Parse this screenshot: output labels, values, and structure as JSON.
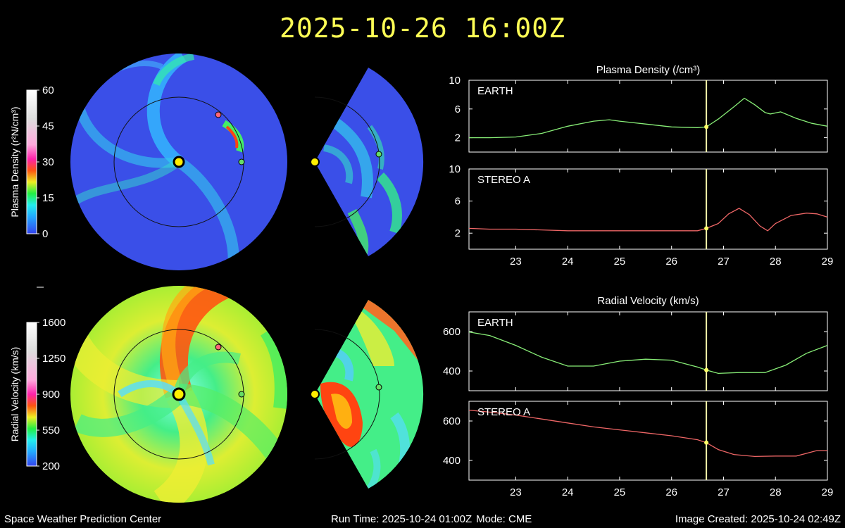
{
  "header": {
    "timestamp": "2025-10-26 16:00Z"
  },
  "footer": {
    "center": "Space Weather Prediction Center",
    "run_time_label": "Run Time: 2025-10-24 01:00Z",
    "mode_label": "Mode: CME",
    "image_created_label": "Image Created: 2025-10-24 02:49Z"
  },
  "colorbars": {
    "density": {
      "label": "Plasma Density (r²N/cm³)",
      "ticks": [
        "0",
        "15",
        "30",
        "45",
        "60"
      ],
      "range": [
        0,
        60
      ]
    },
    "velocity": {
      "label": "Radial Velocity (km/s)",
      "ticks": [
        "200",
        "550",
        "900",
        "1250",
        "1600"
      ],
      "range": [
        200,
        1600
      ]
    }
  },
  "colors": {
    "earth_trace": "#88ee77",
    "stereo_trace": "#ee6666",
    "time_marker": "#ffffaa",
    "title": "#ffff55",
    "sun": "#ffee00",
    "earth_dot": "#66dd66",
    "stereo_dot": "#ff6677"
  },
  "chart_data": [
    {
      "type": "line",
      "title": "Plasma Density (/cm³)",
      "panels": [
        {
          "name": "EARTH",
          "ylim": [
            0,
            10
          ],
          "yticks": [
            "2",
            "6",
            "10"
          ],
          "x": [
            22.1,
            22.5,
            23.0,
            23.5,
            24.0,
            24.5,
            24.8,
            25.0,
            25.5,
            26.0,
            26.5,
            26.67,
            26.9,
            27.2,
            27.4,
            27.6,
            27.8,
            27.9,
            28.1,
            28.4,
            28.7,
            29.0
          ],
          "y": [
            2.0,
            2.0,
            2.1,
            2.6,
            3.6,
            4.3,
            4.5,
            4.3,
            3.9,
            3.5,
            3.4,
            3.5,
            4.6,
            6.3,
            7.5,
            6.6,
            5.5,
            5.3,
            5.6,
            4.7,
            4.0,
            3.6
          ]
        },
        {
          "name": "STEREO A",
          "ylim": [
            0,
            10
          ],
          "yticks": [
            "2",
            "6",
            "10"
          ],
          "x": [
            22.1,
            22.5,
            23.0,
            23.5,
            24.0,
            24.5,
            25.0,
            25.5,
            26.0,
            26.5,
            26.67,
            26.9,
            27.1,
            27.3,
            27.5,
            27.7,
            27.85,
            28.0,
            28.3,
            28.6,
            28.8,
            29.0
          ],
          "y": [
            2.6,
            2.5,
            2.5,
            2.4,
            2.3,
            2.3,
            2.3,
            2.3,
            2.3,
            2.3,
            2.6,
            3.2,
            4.4,
            5.1,
            4.3,
            2.9,
            2.3,
            3.2,
            4.2,
            4.5,
            4.4,
            4.0
          ]
        }
      ],
      "xticks": [
        "23",
        "24",
        "25",
        "26",
        "27",
        "28",
        "29"
      ],
      "xlim": [
        22.1,
        29.0
      ],
      "marker_x": 26.67
    },
    {
      "type": "line",
      "title": "Radial Velocity (km/s)",
      "panels": [
        {
          "name": "EARTH",
          "ylim": [
            300,
            700
          ],
          "yticks": [
            "400",
            "600"
          ],
          "x": [
            22.1,
            22.5,
            23.0,
            23.5,
            24.0,
            24.5,
            25.0,
            25.5,
            26.0,
            26.5,
            26.67,
            26.9,
            27.3,
            27.8,
            28.2,
            28.6,
            29.0
          ],
          "y": [
            598,
            580,
            530,
            470,
            425,
            425,
            450,
            460,
            455,
            420,
            405,
            388,
            392,
            392,
            430,
            490,
            530
          ]
        },
        {
          "name": "STEREO A",
          "ylim": [
            300,
            700
          ],
          "yticks": [
            "400",
            "600"
          ],
          "x": [
            22.1,
            22.5,
            23.0,
            23.5,
            24.0,
            24.5,
            25.0,
            25.5,
            26.0,
            26.5,
            26.67,
            26.9,
            27.2,
            27.6,
            28.0,
            28.4,
            28.8,
            29.0
          ],
          "y": [
            655,
            645,
            630,
            610,
            590,
            570,
            555,
            540,
            525,
            505,
            490,
            455,
            430,
            420,
            422,
            422,
            450,
            450
          ]
        }
      ],
      "xticks": [
        "23",
        "24",
        "25",
        "26",
        "27",
        "28",
        "29"
      ],
      "xlim": [
        22.1,
        29.0
      ],
      "marker_x": 26.67
    }
  ]
}
